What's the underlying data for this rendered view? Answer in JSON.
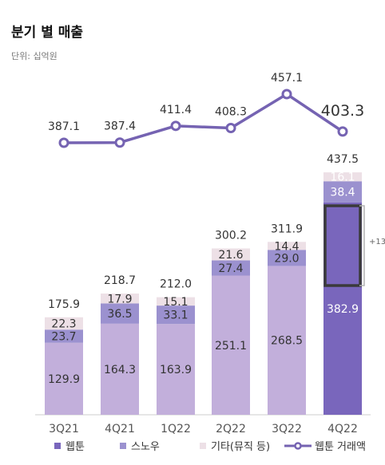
{
  "header": {
    "title": "분기 별 매출",
    "unit": "단위: 십억원"
  },
  "annotation": {
    "bracket_label": "+13"
  },
  "colors": {
    "webtoon": "#7966bc",
    "snow": "#9b91cf",
    "other": "#ede0e6",
    "line": "#7563b2",
    "bar_bg": "#c2afdb",
    "highlight_bar_bg": "#7966bc",
    "bracket_box": "#3a3a3a",
    "bracket_line": "#b4b4b4"
  },
  "chart_data": {
    "type": "bar",
    "stacked": true,
    "categories": [
      "3Q21",
      "4Q21",
      "1Q22",
      "2Q22",
      "3Q22",
      "4Q22"
    ],
    "series": [
      {
        "name": "웹툰",
        "values": [
          129.9,
          164.3,
          163.9,
          251.1,
          268.5,
          382.9
        ]
      },
      {
        "name": "스노우",
        "values": [
          23.7,
          36.5,
          33.1,
          27.4,
          29.0,
          38.4
        ]
      },
      {
        "name": "기타(뮤직 등)",
        "values": [
          22.3,
          17.9,
          15.1,
          21.6,
          14.4,
          16.1
        ]
      }
    ],
    "totals": [
      175.9,
      218.7,
      212.0,
      300.2,
      311.9,
      437.5
    ],
    "line": {
      "name": "웹툰 거래액",
      "values": [
        387.1,
        387.4,
        411.4,
        408.3,
        457.1,
        403.3
      ]
    },
    "ylim": [
      0,
      437.5
    ],
    "grid": false,
    "legend_position": "bottom"
  }
}
